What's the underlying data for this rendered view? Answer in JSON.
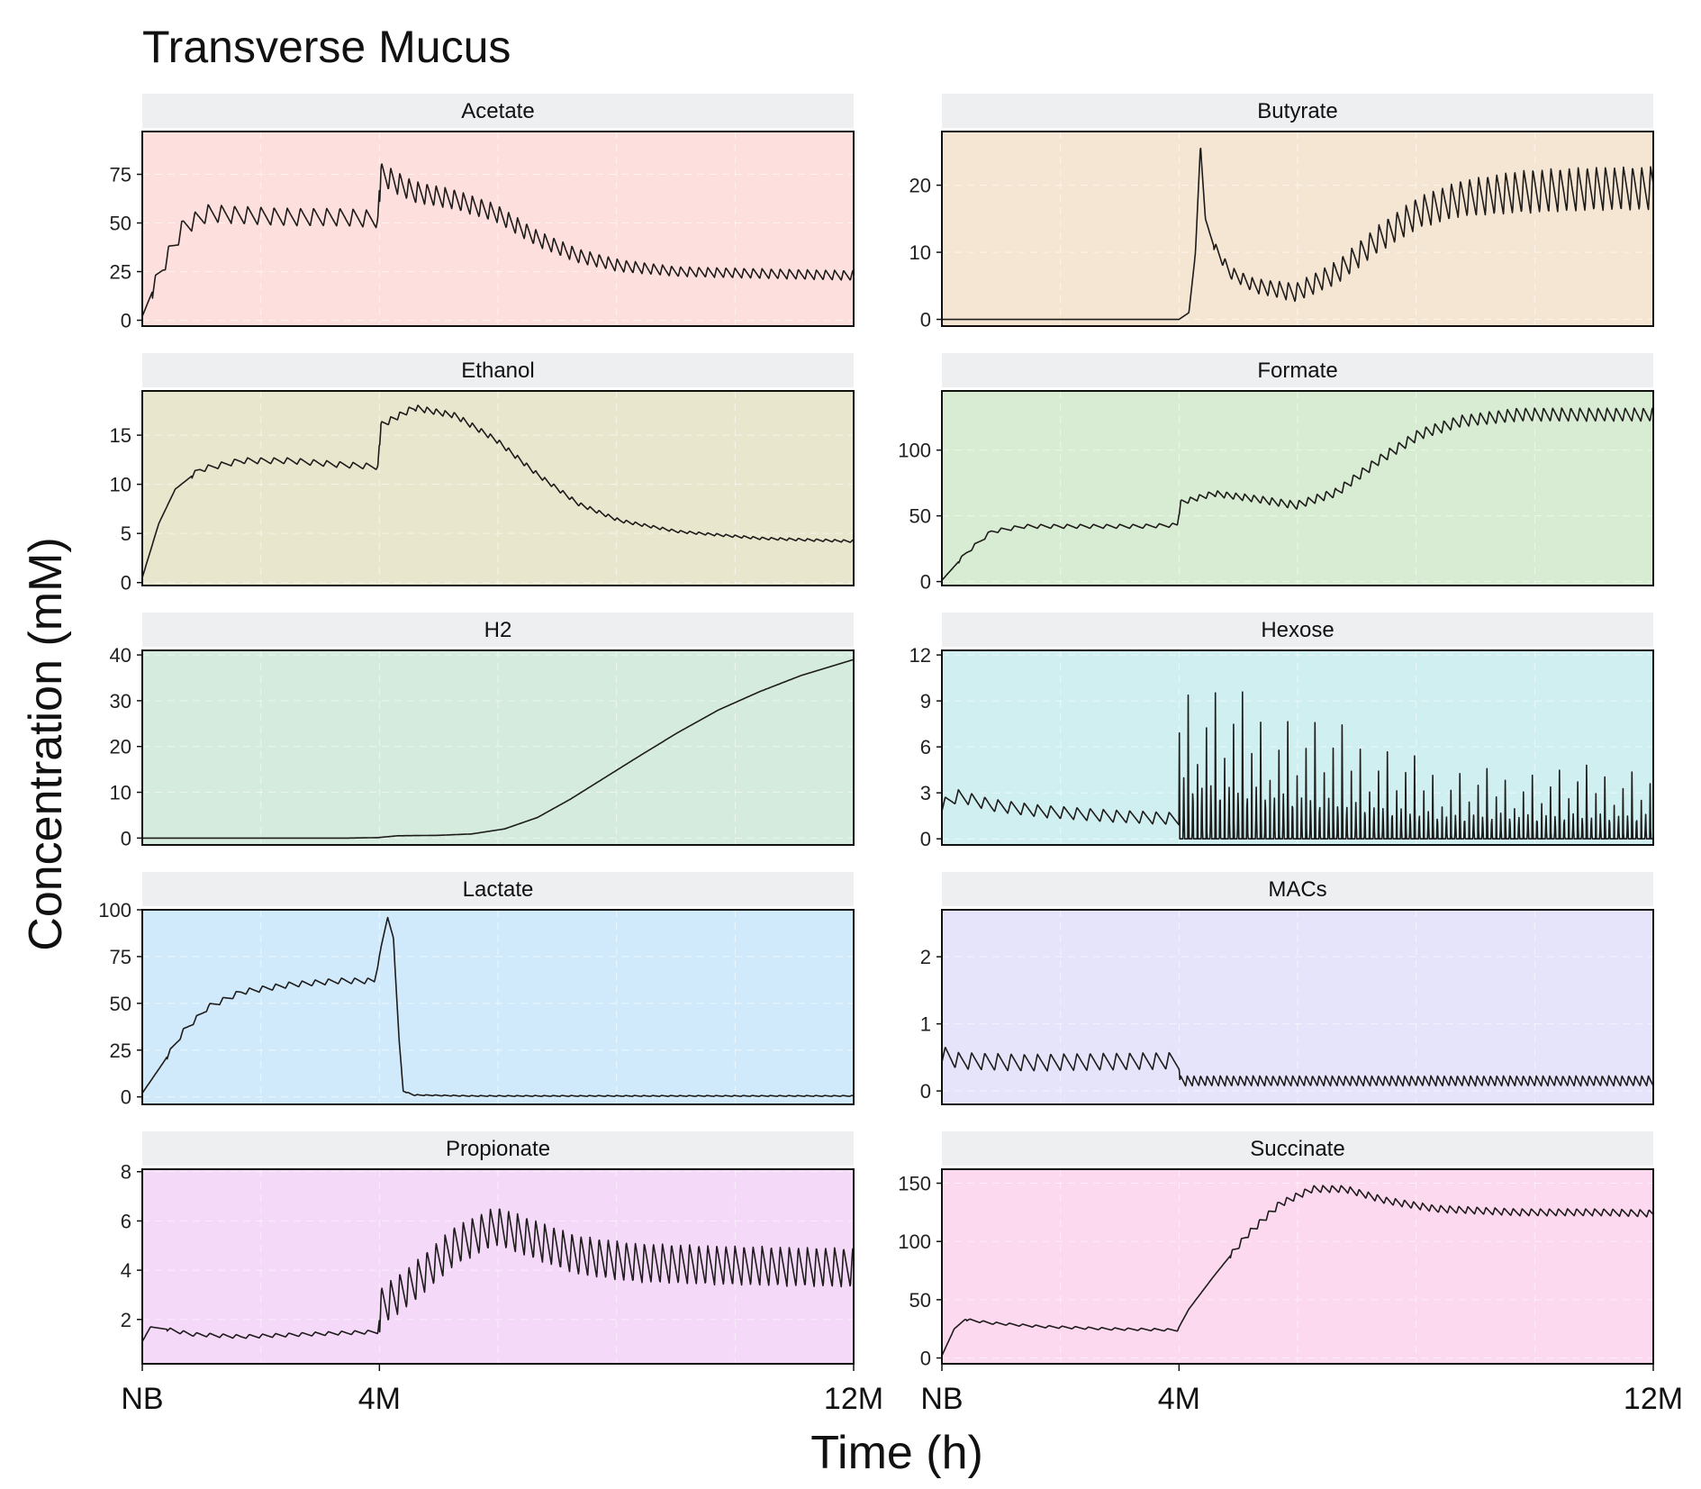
{
  "title": "Transverse Mucus",
  "chart_data": {
    "type": "line",
    "title": "Transverse Mucus",
    "xlabel": "Time (h)",
    "ylabel": "Concentration (mM)",
    "x_ticks": [
      "NB",
      "4M",
      "12M"
    ],
    "x_tick_positions": [
      0,
      2880,
      8640
    ],
    "xlim": [
      0,
      8640
    ],
    "grid": true,
    "legend": "none",
    "facets": [
      {
        "name": "Acetate",
        "color": "#fde0dd",
        "ylim": [
          -3,
          97
        ],
        "yticks": [
          0,
          25,
          50,
          75
        ],
        "series": [
          {
            "x": 0,
            "y": 2
          },
          {
            "x": 250,
            "y": 28
          },
          {
            "x": 500,
            "y": 48
          },
          {
            "x": 800,
            "y": 55
          },
          {
            "x": 1200,
            "y": 54
          },
          {
            "x": 1800,
            "y": 53
          },
          {
            "x": 2400,
            "y": 53
          },
          {
            "x": 2860,
            "y": 52
          },
          {
            "x": 2900,
            "y": 75
          },
          {
            "x": 3300,
            "y": 66
          },
          {
            "x": 3800,
            "y": 62
          },
          {
            "x": 4300,
            "y": 55
          },
          {
            "x": 4800,
            "y": 42
          },
          {
            "x": 5300,
            "y": 33
          },
          {
            "x": 5800,
            "y": 28
          },
          {
            "x": 6500,
            "y": 25
          },
          {
            "x": 7500,
            "y": 24
          },
          {
            "x": 8640,
            "y": 23
          }
        ],
        "osc": [
          {
            "from": 120,
            "to": 2880,
            "period": 160,
            "amp": 9
          },
          {
            "from": 2880,
            "to": 8640,
            "period": 110,
            "amp": 12,
            "decay_to": 5
          }
        ]
      },
      {
        "name": "Butyrate",
        "color": "#f5e6d3",
        "ylim": [
          -1,
          28
        ],
        "yticks": [
          0,
          10,
          20
        ],
        "series": [
          {
            "x": 0,
            "y": 0
          },
          {
            "x": 2880,
            "y": 0
          },
          {
            "x": 3000,
            "y": 1
          },
          {
            "x": 3080,
            "y": 10
          },
          {
            "x": 3140,
            "y": 26
          },
          {
            "x": 3200,
            "y": 15
          },
          {
            "x": 3300,
            "y": 11
          },
          {
            "x": 3500,
            "y": 7
          },
          {
            "x": 3800,
            "y": 5
          },
          {
            "x": 4300,
            "y": 4
          },
          {
            "x": 4800,
            "y": 7
          },
          {
            "x": 5300,
            "y": 12
          },
          {
            "x": 5800,
            "y": 16
          },
          {
            "x": 6300,
            "y": 18
          },
          {
            "x": 7000,
            "y": 19
          },
          {
            "x": 8000,
            "y": 19.5
          },
          {
            "x": 8640,
            "y": 19.5
          }
        ],
        "osc": [
          {
            "from": 3300,
            "to": 8640,
            "period": 110,
            "amp": 1.5,
            "grow_to": 6.5
          }
        ]
      },
      {
        "name": "Ethanol",
        "color": "#e8e7ce",
        "ylim": [
          -0.3,
          19.5
        ],
        "yticks": [
          0,
          5,
          10,
          15
        ],
        "series": [
          {
            "x": 0,
            "y": 0.5
          },
          {
            "x": 200,
            "y": 6
          },
          {
            "x": 400,
            "y": 9.5
          },
          {
            "x": 700,
            "y": 11.5
          },
          {
            "x": 1200,
            "y": 12.4
          },
          {
            "x": 1800,
            "y": 12.4
          },
          {
            "x": 2400,
            "y": 12
          },
          {
            "x": 2860,
            "y": 11.8
          },
          {
            "x": 2900,
            "y": 16
          },
          {
            "x": 3300,
            "y": 17.8
          },
          {
            "x": 3800,
            "y": 17
          },
          {
            "x": 4300,
            "y": 14.5
          },
          {
            "x": 4800,
            "y": 11
          },
          {
            "x": 5300,
            "y": 8
          },
          {
            "x": 5800,
            "y": 6.3
          },
          {
            "x": 6500,
            "y": 5.2
          },
          {
            "x": 7500,
            "y": 4.5
          },
          {
            "x": 8640,
            "y": 4.2
          }
        ],
        "osc": [
          {
            "from": 600,
            "to": 2880,
            "period": 160,
            "amp": 0.6
          },
          {
            "from": 2880,
            "to": 8640,
            "period": 110,
            "amp": 0.7,
            "decay_to": 0.25
          }
        ]
      },
      {
        "name": "Formate",
        "color": "#d7ecd2",
        "ylim": [
          -3,
          145
        ],
        "yticks": [
          0,
          50,
          100
        ],
        "series": [
          {
            "x": 0,
            "y": 1
          },
          {
            "x": 300,
            "y": 22
          },
          {
            "x": 600,
            "y": 38
          },
          {
            "x": 1000,
            "y": 42
          },
          {
            "x": 1800,
            "y": 42
          },
          {
            "x": 2400,
            "y": 42
          },
          {
            "x": 2860,
            "y": 43
          },
          {
            "x": 2900,
            "y": 60
          },
          {
            "x": 3300,
            "y": 67
          },
          {
            "x": 3800,
            "y": 63
          },
          {
            "x": 4300,
            "y": 58
          },
          {
            "x": 4800,
            "y": 68
          },
          {
            "x": 5300,
            "y": 92
          },
          {
            "x": 5800,
            "y": 112
          },
          {
            "x": 6300,
            "y": 122
          },
          {
            "x": 7000,
            "y": 127
          },
          {
            "x": 8000,
            "y": 127
          },
          {
            "x": 8640,
            "y": 127
          }
        ],
        "osc": [
          {
            "from": 200,
            "to": 2880,
            "period": 160,
            "amp": 3
          },
          {
            "from": 2880,
            "to": 8640,
            "period": 110,
            "amp": 4,
            "grow_to": 10
          }
        ]
      },
      {
        "name": "H2",
        "color": "#d5ebdd",
        "ylim": [
          -1.5,
          41
        ],
        "yticks": [
          0,
          10,
          20,
          30,
          40
        ],
        "series": [
          {
            "x": 0,
            "y": 0
          },
          {
            "x": 2500,
            "y": 0
          },
          {
            "x": 2860,
            "y": 0.1
          },
          {
            "x": 3100,
            "y": 0.5
          },
          {
            "x": 3600,
            "y": 0.6
          },
          {
            "x": 4000,
            "y": 0.9
          },
          {
            "x": 4400,
            "y": 2.0
          },
          {
            "x": 4800,
            "y": 4.5
          },
          {
            "x": 5200,
            "y": 8.5
          },
          {
            "x": 5600,
            "y": 13
          },
          {
            "x": 6000,
            "y": 17.5
          },
          {
            "x": 6500,
            "y": 23
          },
          {
            "x": 7000,
            "y": 28
          },
          {
            "x": 7500,
            "y": 32
          },
          {
            "x": 8000,
            "y": 35.5
          },
          {
            "x": 8640,
            "y": 39
          }
        ],
        "osc": []
      },
      {
        "name": "Hexose",
        "color": "#d0eff0",
        "ylim": [
          -0.4,
          12.3
        ],
        "yticks": [
          0,
          3,
          6,
          9,
          12
        ],
        "series": [
          {
            "x": 0,
            "y": 2.2
          },
          {
            "x": 200,
            "y": 2.8
          },
          {
            "x": 600,
            "y": 2.2
          },
          {
            "x": 1200,
            "y": 1.8
          },
          {
            "x": 2000,
            "y": 1.5
          },
          {
            "x": 2880,
            "y": 1.3
          }
        ],
        "spikes": [
          {
            "from": 2880,
            "to": 8640,
            "period": 110,
            "peak": 11.7,
            "decay_to": 4.8,
            "base": 0
          }
        ],
        "osc": [
          {
            "from": 0,
            "to": 2880,
            "period": 160,
            "amp": 0.8
          }
        ]
      },
      {
        "name": "Lactate",
        "color": "#d1eafb",
        "ylim": [
          -4,
          100
        ],
        "yticks": [
          0,
          25,
          50,
          75,
          100
        ],
        "series": [
          {
            "x": 0,
            "y": 2
          },
          {
            "x": 250,
            "y": 18
          },
          {
            "x": 500,
            "y": 35
          },
          {
            "x": 800,
            "y": 48
          },
          {
            "x": 1200,
            "y": 56
          },
          {
            "x": 1800,
            "y": 60
          },
          {
            "x": 2400,
            "y": 62
          },
          {
            "x": 2820,
            "y": 62
          },
          {
            "x": 2900,
            "y": 80
          },
          {
            "x": 2980,
            "y": 96
          },
          {
            "x": 3050,
            "y": 85
          },
          {
            "x": 3120,
            "y": 30
          },
          {
            "x": 3170,
            "y": 3
          },
          {
            "x": 3300,
            "y": 1
          },
          {
            "x": 4000,
            "y": 0.5
          },
          {
            "x": 8640,
            "y": 0.5
          }
        ],
        "osc": [
          {
            "from": 300,
            "to": 2880,
            "period": 160,
            "amp": 3
          },
          {
            "from": 3200,
            "to": 8640,
            "period": 110,
            "amp": 0.5
          }
        ]
      },
      {
        "name": "MACs",
        "color": "#e6e4fb",
        "ylim": [
          -0.2,
          2.7
        ],
        "yticks": [
          0,
          1,
          2
        ],
        "series": [
          {
            "x": 0,
            "y": 0.55
          },
          {
            "x": 200,
            "y": 0.45
          },
          {
            "x": 1000,
            "y": 0.42
          },
          {
            "x": 2880,
            "y": 0.45
          },
          {
            "x": 2890,
            "y": 0.15
          },
          {
            "x": 8640,
            "y": 0.15
          }
        ],
        "spikes": [],
        "osc": [
          {
            "from": 0,
            "to": 2880,
            "period": 160,
            "amp": 0.25
          },
          {
            "from": 2880,
            "to": 8640,
            "period": 80,
            "amp": 0.15
          }
        ]
      },
      {
        "name": "Propionate",
        "color": "#f4d9f8",
        "ylim": [
          0.2,
          8.1
        ],
        "yticks": [
          2,
          4,
          6,
          8
        ],
        "series": [
          {
            "x": 0,
            "y": 1.1
          },
          {
            "x": 100,
            "y": 1.7
          },
          {
            "x": 300,
            "y": 1.6
          },
          {
            "x": 600,
            "y": 1.4
          },
          {
            "x": 1200,
            "y": 1.3
          },
          {
            "x": 2000,
            "y": 1.4
          },
          {
            "x": 2860,
            "y": 1.5
          },
          {
            "x": 2900,
            "y": 2.5
          },
          {
            "x": 3300,
            "y": 3.5
          },
          {
            "x": 3800,
            "y": 5.0
          },
          {
            "x": 4300,
            "y": 5.8
          },
          {
            "x": 4800,
            "y": 5.2
          },
          {
            "x": 5300,
            "y": 4.6
          },
          {
            "x": 6000,
            "y": 4.3
          },
          {
            "x": 7000,
            "y": 4.2
          },
          {
            "x": 8640,
            "y": 4.1
          }
        ],
        "osc": [
          {
            "from": 300,
            "to": 2880,
            "period": 160,
            "amp": 0.15
          },
          {
            "from": 2880,
            "to": 8640,
            "period": 110,
            "amp": 1.6
          }
        ]
      },
      {
        "name": "Succinate",
        "color": "#fcd9ee",
        "ylim": [
          -5,
          162
        ],
        "yticks": [
          0,
          50,
          100,
          150
        ],
        "series": [
          {
            "x": 0,
            "y": 2
          },
          {
            "x": 150,
            "y": 25
          },
          {
            "x": 280,
            "y": 33
          },
          {
            "x": 600,
            "y": 30
          },
          {
            "x": 1200,
            "y": 27
          },
          {
            "x": 2000,
            "y": 25
          },
          {
            "x": 2860,
            "y": 24
          },
          {
            "x": 3000,
            "y": 42
          },
          {
            "x": 3300,
            "y": 70
          },
          {
            "x": 3700,
            "y": 105
          },
          {
            "x": 4100,
            "y": 132
          },
          {
            "x": 4500,
            "y": 145
          },
          {
            "x": 4900,
            "y": 145
          },
          {
            "x": 5400,
            "y": 135
          },
          {
            "x": 6000,
            "y": 128
          },
          {
            "x": 7000,
            "y": 125
          },
          {
            "x": 8000,
            "y": 125
          },
          {
            "x": 8640,
            "y": 124
          }
        ],
        "osc": [
          {
            "from": 300,
            "to": 2880,
            "period": 160,
            "amp": 2
          },
          {
            "from": 3500,
            "to": 8640,
            "period": 110,
            "amp": 6
          }
        ]
      }
    ]
  }
}
